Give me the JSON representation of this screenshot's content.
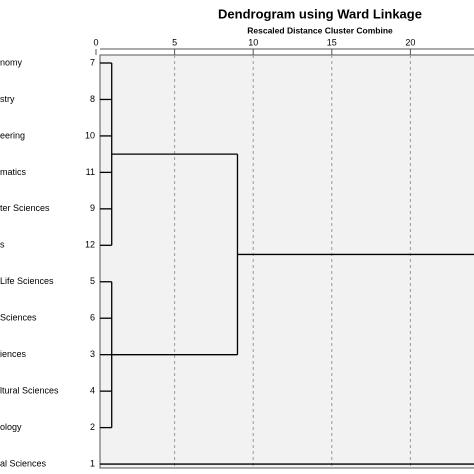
{
  "chart_data": {
    "type": "dendrogram",
    "title": "Dendrogram using Ward Linkage",
    "subtitle": "Rescaled Distance Cluster Combine",
    "leaves": [
      {
        "label": "nomy",
        "case": 7
      },
      {
        "label": "stry",
        "case": 8
      },
      {
        "label": "eering",
        "case": 10
      },
      {
        "label": "matics",
        "case": 11
      },
      {
        "label": "ter Sciences",
        "case": 9
      },
      {
        "label": "s",
        "case": 12
      },
      {
        "label": "Life Sciences",
        "case": 5
      },
      {
        "label": "Sciences",
        "case": 6
      },
      {
        "label": "iences",
        "case": 3
      },
      {
        "label": "ltural  Sciences",
        "case": 4
      },
      {
        "label": "ology",
        "case": 2
      },
      {
        "label": "al Sciences",
        "case": 1
      }
    ],
    "merges": [
      {
        "distance": 1,
        "children": [
          0,
          1,
          2,
          3,
          4,
          5
        ]
      },
      {
        "distance": 1,
        "children": [
          6,
          7,
          8,
          9,
          10
        ]
      },
      {
        "distance": 9,
        "children": [
          12,
          13
        ]
      },
      {
        "distance": 25,
        "children": [
          14,
          11
        ]
      }
    ],
    "xlim": [
      0,
      25
    ],
    "xticks": [
      0,
      5,
      10,
      15,
      20
    ],
    "grid": true,
    "color": "#000000"
  }
}
